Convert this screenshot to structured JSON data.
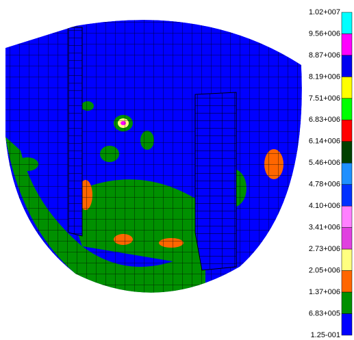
{
  "legend": {
    "labels": [
      "1.02+007",
      "9.56+006",
      "8.87+006",
      "8.19+006",
      "7.51+006",
      "6.83+006",
      "6.14+006",
      "5.46+006",
      "4.78+006",
      "4.10+006",
      "3.41+006",
      "2.73+006",
      "2.05+006",
      "1.37+006",
      "6.83+005",
      "1.25-001"
    ],
    "colors": [
      "#00ffff",
      "#ff00ff",
      "#0000f0",
      "#ffff00",
      "#00ff00",
      "#ff0000",
      "#004000",
      "#1e90ff",
      "#0030ff",
      "#ff80ff",
      "#e040e0",
      "#ffff80",
      "#ff6600",
      "#009000",
      "#0000ff"
    ]
  }
}
